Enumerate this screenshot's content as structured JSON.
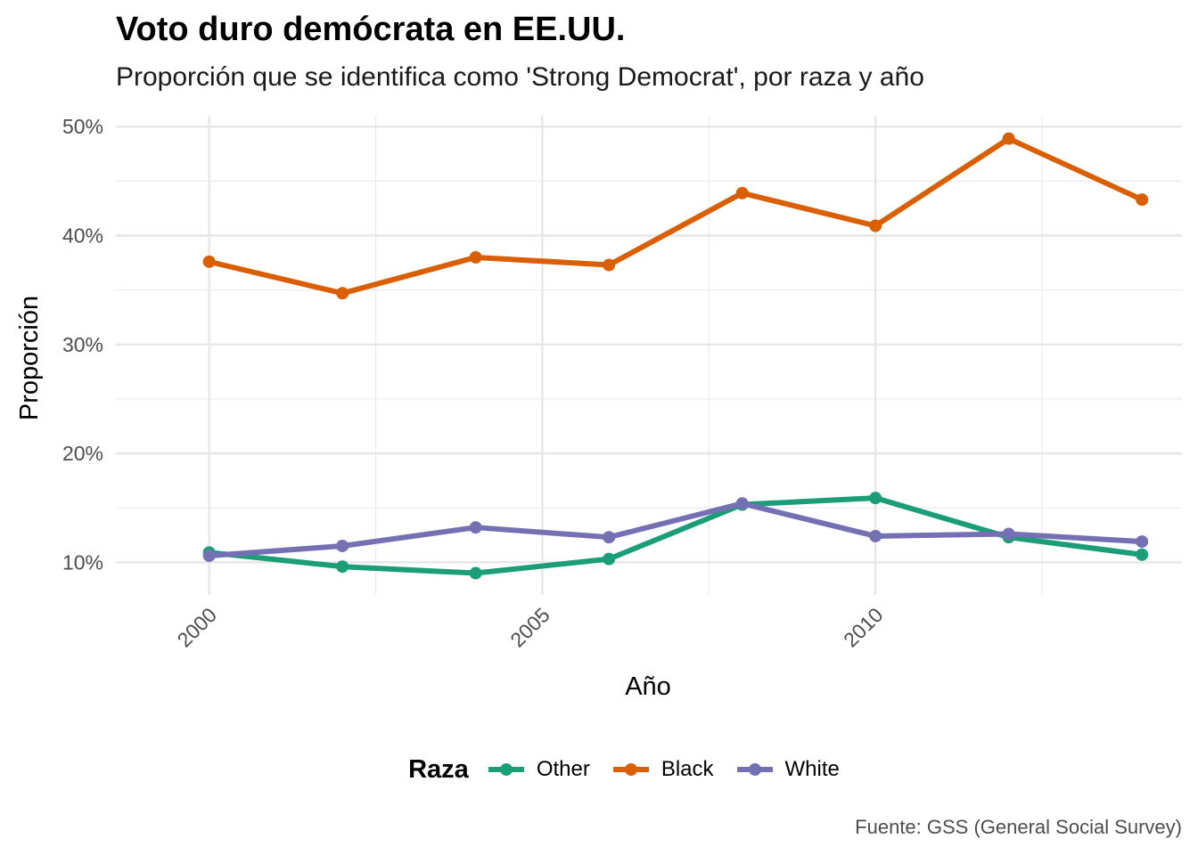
{
  "chart_data": {
    "type": "line",
    "title": "Voto duro demócrata en EE.UU.",
    "subtitle": "Proporción que se identifica como 'Strong Democrat', por raza y año",
    "xlabel": "Año",
    "ylabel": "Proporción",
    "caption": "Fuente: GSS (General Social Survey)",
    "x": [
      2000,
      2002,
      2004,
      2006,
      2008,
      2010,
      2012,
      2014
    ],
    "xlim": [
      1998.6,
      2014.6
    ],
    "ylim": [
      0.07,
      0.51
    ],
    "x_ticks": [
      2000,
      2005,
      2010
    ],
    "x_tick_labels": [
      "2000",
      "2005",
      "2010"
    ],
    "y_ticks": [
      0.1,
      0.2,
      0.3,
      0.4,
      0.5
    ],
    "y_tick_labels": [
      "10%",
      "20%",
      "30%",
      "40%",
      "50%"
    ],
    "grid": true,
    "legend": {
      "title": "Raza",
      "position": "bottom"
    },
    "series": [
      {
        "name": "Other",
        "color": "#1b9e77",
        "values": [
          0.109,
          0.096,
          0.09,
          0.103,
          0.153,
          0.159,
          0.123,
          0.107
        ]
      },
      {
        "name": "Black",
        "color": "#d95f02",
        "values": [
          0.376,
          0.347,
          0.38,
          0.373,
          0.439,
          0.409,
          0.489,
          0.433
        ]
      },
      {
        "name": "White",
        "color": "#7570b3",
        "values": [
          0.106,
          0.115,
          0.132,
          0.123,
          0.154,
          0.124,
          0.126,
          0.119
        ]
      }
    ]
  }
}
